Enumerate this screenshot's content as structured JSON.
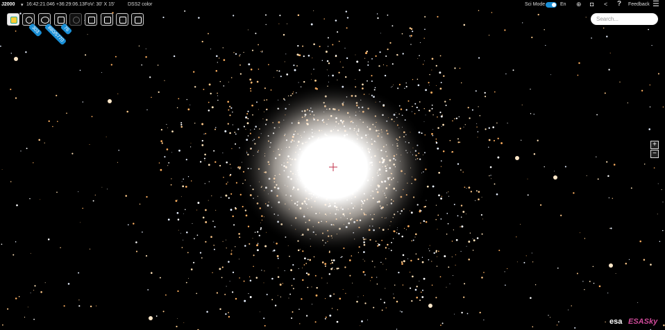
{
  "top_bar": {
    "coordinate_frame": "J2000",
    "coordinates": "16:42:21.046 +36:29:06.13",
    "fov": "FoV: 30' X 15'",
    "survey": "DSS2 color",
    "sci_mode": "Sci Mode",
    "language": "En",
    "feedback": "Feedback"
  },
  "search": {
    "placeholder": "Search..."
  },
  "toolbar": {
    "badges": [
      "303",
      "880/5770",
      "76"
    ]
  },
  "zoom": {
    "in": "+",
    "out": "−"
  },
  "logos": {
    "esa": "esa",
    "esasky": "ESASky"
  }
}
